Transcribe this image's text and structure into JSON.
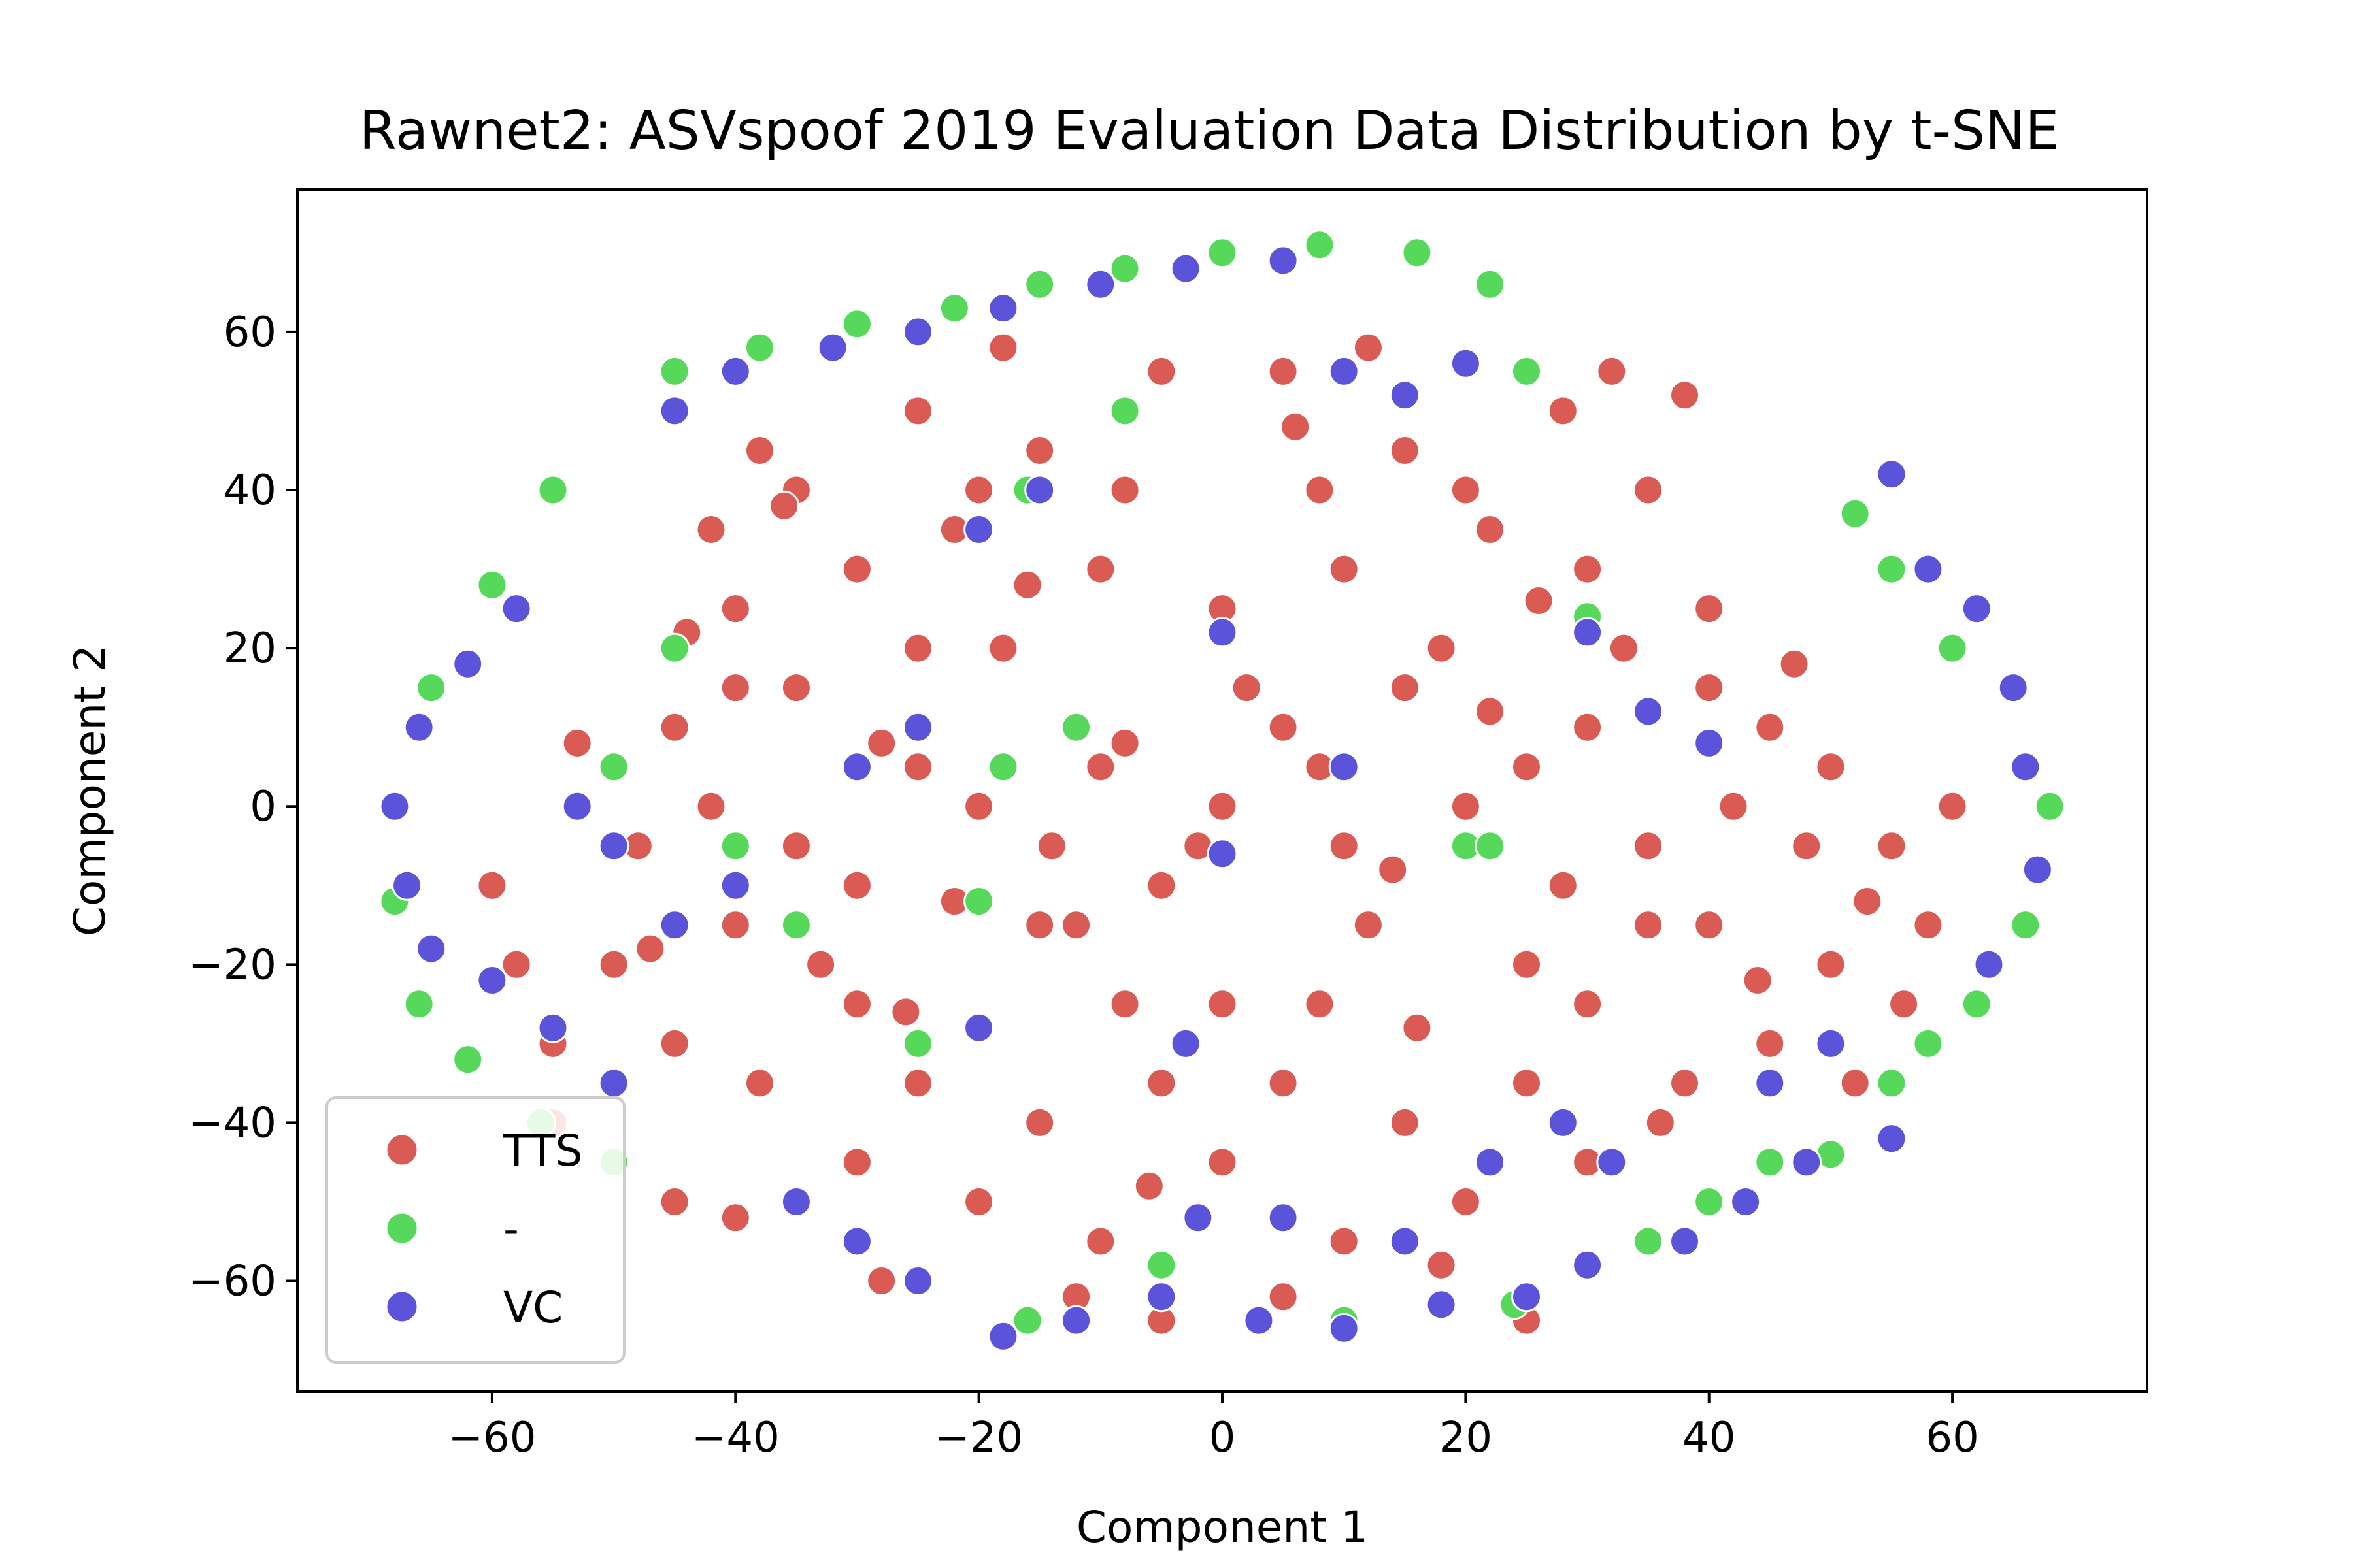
{
  "chart_data": {
    "type": "scatter",
    "title": "Rawnet2: ASVspoof 2019 Evaluation Data  Distribution by t-SNE",
    "xlabel": "Component 1",
    "ylabel": "Component 2",
    "xlim": [
      -76,
      76
    ],
    "ylim": [
      -74,
      78
    ],
    "xticks": [
      -60,
      -40,
      -20,
      0,
      20,
      40,
      60
    ],
    "yticks": [
      -60,
      -40,
      -20,
      0,
      20,
      40,
      60
    ],
    "grid": false,
    "legend_position": "lower-left",
    "point_description": "Several thousand points; approximate sampled positions given per series (values in component units).",
    "series": [
      {
        "name": "TTS",
        "color": "#da5b54",
        "points": [
          [
            0,
            0
          ],
          [
            5,
            10
          ],
          [
            -5,
            -10
          ],
          [
            10,
            -5
          ],
          [
            -10,
            5
          ],
          [
            15,
            15
          ],
          [
            -15,
            -15
          ],
          [
            20,
            0
          ],
          [
            -20,
            0
          ],
          [
            0,
            25
          ],
          [
            0,
            -25
          ],
          [
            25,
            -20
          ],
          [
            -25,
            20
          ],
          [
            30,
            10
          ],
          [
            -30,
            -10
          ],
          [
            35,
            -15
          ],
          [
            -35,
            15
          ],
          [
            8,
            40
          ],
          [
            -8,
            40
          ],
          [
            15,
            45
          ],
          [
            -15,
            45
          ],
          [
            22,
            35
          ],
          [
            -22,
            35
          ],
          [
            5,
            55
          ],
          [
            -5,
            55
          ],
          [
            12,
            58
          ],
          [
            -18,
            58
          ],
          [
            -25,
            50
          ],
          [
            28,
            50
          ],
          [
            35,
            40
          ],
          [
            -35,
            40
          ],
          [
            40,
            25
          ],
          [
            -40,
            25
          ],
          [
            45,
            10
          ],
          [
            -45,
            10
          ],
          [
            48,
            -5
          ],
          [
            -48,
            -5
          ],
          [
            50,
            -20
          ],
          [
            -50,
            -20
          ],
          [
            45,
            -30
          ],
          [
            -45,
            -30
          ],
          [
            38,
            -35
          ],
          [
            -38,
            -35
          ],
          [
            30,
            -45
          ],
          [
            -30,
            -45
          ],
          [
            20,
            -50
          ],
          [
            -20,
            -50
          ],
          [
            10,
            -55
          ],
          [
            -10,
            -55
          ],
          [
            0,
            -45
          ],
          [
            5,
            -35
          ],
          [
            -5,
            -35
          ],
          [
            15,
            -40
          ],
          [
            -15,
            -40
          ],
          [
            25,
            -35
          ],
          [
            -25,
            -35
          ],
          [
            30,
            -25
          ],
          [
            -30,
            -25
          ],
          [
            40,
            -15
          ],
          [
            -40,
            -15
          ],
          [
            42,
            0
          ],
          [
            -42,
            0
          ],
          [
            40,
            15
          ],
          [
            -40,
            15
          ],
          [
            30,
            30
          ],
          [
            -30,
            30
          ],
          [
            20,
            40
          ],
          [
            -20,
            40
          ],
          [
            10,
            30
          ],
          [
            -10,
            30
          ],
          [
            18,
            20
          ],
          [
            -18,
            20
          ],
          [
            25,
            5
          ],
          [
            -25,
            5
          ],
          [
            12,
            -15
          ],
          [
            -12,
            -15
          ],
          [
            8,
            -25
          ],
          [
            -8,
            -25
          ],
          [
            35,
            -5
          ],
          [
            -35,
            -5
          ],
          [
            55,
            -5
          ],
          [
            58,
            -15
          ],
          [
            60,
            0
          ],
          [
            -55,
            -40
          ],
          [
            -50,
            -45
          ],
          [
            -45,
            -50
          ],
          [
            -40,
            -52
          ],
          [
            -35,
            -50
          ],
          [
            -55,
            -30
          ],
          [
            -58,
            -20
          ],
          [
            -60,
            -10
          ],
          [
            52,
            -35
          ],
          [
            56,
            -25
          ],
          [
            32,
            55
          ],
          [
            38,
            52
          ],
          [
            -28,
            -60
          ],
          [
            -12,
            -62
          ],
          [
            5,
            -62
          ],
          [
            18,
            -58
          ],
          [
            25,
            -65
          ],
          [
            -5,
            -65
          ],
          [
            -38,
            45
          ],
          [
            -42,
            35
          ],
          [
            -45,
            20
          ],
          [
            2,
            15
          ],
          [
            -2,
            -5
          ],
          [
            8,
            5
          ],
          [
            -8,
            8
          ],
          [
            14,
            -8
          ],
          [
            -14,
            -5
          ],
          [
            22,
            12
          ],
          [
            -22,
            -12
          ],
          [
            28,
            -10
          ],
          [
            -28,
            8
          ],
          [
            33,
            20
          ],
          [
            -33,
            -20
          ],
          [
            44,
            -22
          ],
          [
            -44,
            22
          ],
          [
            47,
            18
          ],
          [
            -47,
            -18
          ],
          [
            6,
            48
          ],
          [
            -6,
            -48
          ],
          [
            16,
            -28
          ],
          [
            -16,
            28
          ],
          [
            26,
            26
          ],
          [
            -26,
            -26
          ],
          [
            36,
            -40
          ],
          [
            -36,
            38
          ],
          [
            50,
            5
          ],
          [
            -50,
            -5
          ],
          [
            53,
            -12
          ],
          [
            -53,
            8
          ]
        ]
      },
      {
        "name": "-",
        "color": "#56d95b",
        "points": [
          [
            -30,
            61
          ],
          [
            -22,
            63
          ],
          [
            -15,
            66
          ],
          [
            -8,
            68
          ],
          [
            0,
            70
          ],
          [
            8,
            71
          ],
          [
            16,
            70
          ],
          [
            22,
            66
          ],
          [
            -55,
            40
          ],
          [
            -60,
            28
          ],
          [
            -65,
            15
          ],
          [
            -68,
            0
          ],
          [
            -68,
            -12
          ],
          [
            -66,
            -25
          ],
          [
            -62,
            -32
          ],
          [
            -56,
            -40
          ],
          [
            -50,
            -45
          ],
          [
            -45,
            55
          ],
          [
            -38,
            58
          ],
          [
            60,
            20
          ],
          [
            65,
            15
          ],
          [
            68,
            0
          ],
          [
            66,
            -15
          ],
          [
            62,
            -25
          ],
          [
            58,
            -30
          ],
          [
            55,
            -35
          ],
          [
            50,
            -44
          ],
          [
            45,
            -45
          ],
          [
            40,
            -50
          ],
          [
            35,
            -55
          ],
          [
            -12,
            10
          ],
          [
            -18,
            5
          ],
          [
            20,
            -5
          ],
          [
            22,
            -5
          ],
          [
            -20,
            -12
          ],
          [
            -5,
            -58
          ],
          [
            10,
            -65
          ],
          [
            -25,
            -30
          ],
          [
            52,
            37
          ],
          [
            55,
            30
          ],
          [
            -40,
            -5
          ],
          [
            -35,
            -15
          ],
          [
            -8,
            50
          ],
          [
            -16,
            40
          ],
          [
            -45,
            20
          ],
          [
            -50,
            5
          ],
          [
            30,
            24
          ],
          [
            25,
            55
          ],
          [
            -16,
            -65
          ],
          [
            24,
            -63
          ]
        ]
      },
      {
        "name": "VC",
        "color": "#5b54da",
        "points": [
          [
            -58,
            25
          ],
          [
            -62,
            18
          ],
          [
            -66,
            10
          ],
          [
            -68,
            0
          ],
          [
            -67,
            -10
          ],
          [
            -65,
            -18
          ],
          [
            -60,
            -22
          ],
          [
            -55,
            -28
          ],
          [
            -50,
            -35
          ],
          [
            -45,
            50
          ],
          [
            -40,
            55
          ],
          [
            -32,
            58
          ],
          [
            -25,
            60
          ],
          [
            -18,
            63
          ],
          [
            -10,
            66
          ],
          [
            -3,
            68
          ],
          [
            5,
            69
          ],
          [
            10,
            55
          ],
          [
            15,
            52
          ],
          [
            20,
            56
          ],
          [
            55,
            42
          ],
          [
            58,
            30
          ],
          [
            62,
            25
          ],
          [
            65,
            15
          ],
          [
            66,
            5
          ],
          [
            67,
            -8
          ],
          [
            63,
            -20
          ],
          [
            55,
            -42
          ],
          [
            48,
            -45
          ],
          [
            43,
            -50
          ],
          [
            38,
            -55
          ],
          [
            30,
            -58
          ],
          [
            25,
            -62
          ],
          [
            18,
            -63
          ],
          [
            10,
            -66
          ],
          [
            3,
            -65
          ],
          [
            -5,
            -62
          ],
          [
            -12,
            -65
          ],
          [
            -18,
            -67
          ],
          [
            -25,
            -60
          ],
          [
            -30,
            -55
          ],
          [
            -35,
            -50
          ],
          [
            -20,
            35
          ],
          [
            -15,
            40
          ],
          [
            -25,
            10
          ],
          [
            -30,
            5
          ],
          [
            -40,
            -10
          ],
          [
            -45,
            -15
          ],
          [
            10,
            5
          ],
          [
            0,
            22
          ],
          [
            0,
            -6
          ],
          [
            -3,
            -30
          ],
          [
            -20,
            -28
          ],
          [
            30,
            22
          ],
          [
            35,
            12
          ],
          [
            40,
            8
          ],
          [
            -50,
            -5
          ],
          [
            -53,
            0
          ],
          [
            22,
            -45
          ],
          [
            28,
            -40
          ],
          [
            32,
            -45
          ],
          [
            5,
            -52
          ],
          [
            -2,
            -52
          ],
          [
            15,
            -55
          ],
          [
            45,
            -35
          ],
          [
            50,
            -30
          ]
        ]
      }
    ],
    "legend": [
      "TTS",
      "-",
      "VC"
    ]
  }
}
